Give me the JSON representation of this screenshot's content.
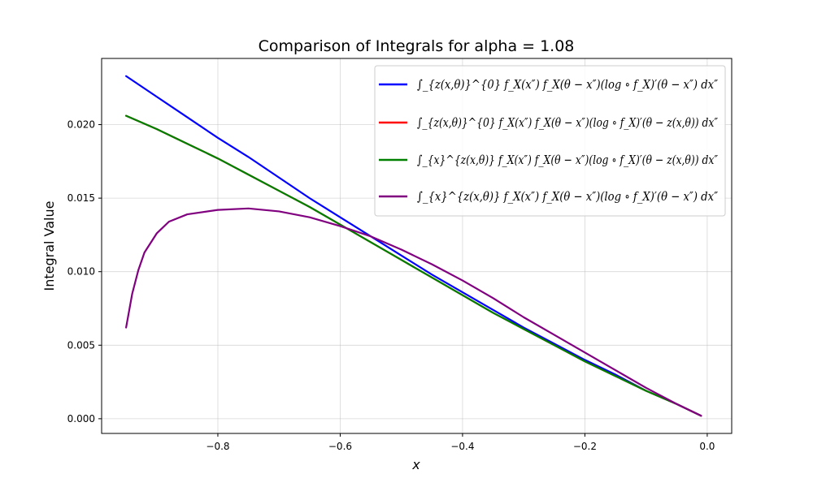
{
  "chart_data": {
    "type": "line",
    "title": "Comparison of Integrals for alpha = 1.08",
    "xlabel": "x",
    "ylabel": "Integral Value",
    "xlim": [
      -0.99,
      0.04
    ],
    "ylim": [
      -0.001,
      0.0245
    ],
    "grid": true,
    "legend_position": "top-right",
    "x_ticks": [
      -0.8,
      -0.6,
      -0.4,
      -0.2,
      0.0
    ],
    "x_tick_labels": [
      "−0.8",
      "−0.6",
      "−0.4",
      "−0.2",
      "0.0"
    ],
    "y_ticks": [
      0.0,
      0.005,
      0.01,
      0.015,
      0.02
    ],
    "y_tick_labels": [
      "0.000",
      "0.005",
      "0.010",
      "0.015",
      "0.020"
    ],
    "series": [
      {
        "name": "∫_{z(x,θ)}^{0} f_X(x″) f_X(θ − x″)(log ∘ f_X)′(θ − x″) dx″",
        "color": "#0000ff",
        "x": [
          -0.95,
          -0.9,
          -0.85,
          -0.8,
          -0.75,
          -0.7,
          -0.65,
          -0.6,
          -0.55,
          -0.5,
          -0.45,
          -0.4,
          -0.35,
          -0.3,
          -0.25,
          -0.2,
          -0.15,
          -0.1,
          -0.05,
          -0.01
        ],
        "y": [
          0.0233,
          0.0219,
          0.0205,
          0.0191,
          0.0178,
          0.0164,
          0.015,
          0.0137,
          0.0124,
          0.0111,
          0.0098,
          0.0086,
          0.0074,
          0.0062,
          0.0051,
          0.004,
          0.003,
          0.0019,
          0.001,
          0.0002
        ]
      },
      {
        "name": "∫_{z(x,θ)}^{0} f_X(x″) f_X(θ − x″)(log ∘ f_X)′(θ − z(x,θ)) dx″",
        "color": "#ff0000",
        "x": [
          -0.95,
          -0.9,
          -0.85,
          -0.8,
          -0.75,
          -0.7,
          -0.65,
          -0.6,
          -0.55,
          -0.5,
          -0.45,
          -0.4,
          -0.35,
          -0.3,
          -0.25,
          -0.2,
          -0.15,
          -0.1,
          -0.05,
          -0.01
        ],
        "y": [
          0.0206,
          0.0197,
          0.0187,
          0.0177,
          0.0166,
          0.0155,
          0.0144,
          0.0132,
          0.012,
          0.0108,
          0.0096,
          0.0084,
          0.0072,
          0.0061,
          0.005,
          0.0039,
          0.0029,
          0.0019,
          0.001,
          0.0002
        ]
      },
      {
        "name": "∫_{x}^{z(x,θ)} f_X(x″) f_X(θ − x″)(log ∘ f_X)′(θ − z(x,θ)) dx″",
        "color": "#008000",
        "x": [
          -0.95,
          -0.9,
          -0.85,
          -0.8,
          -0.75,
          -0.7,
          -0.65,
          -0.6,
          -0.55,
          -0.5,
          -0.45,
          -0.4,
          -0.35,
          -0.3,
          -0.25,
          -0.2,
          -0.15,
          -0.1,
          -0.05,
          -0.01
        ],
        "y": [
          0.0206,
          0.0197,
          0.0187,
          0.0177,
          0.0166,
          0.0155,
          0.0144,
          0.0132,
          0.012,
          0.0108,
          0.0096,
          0.0084,
          0.0072,
          0.0061,
          0.005,
          0.0039,
          0.0029,
          0.0019,
          0.001,
          0.0002
        ]
      },
      {
        "name": "∫_{x}^{z(x,θ)} f_X(x″) f_X(θ − x″)(log ∘ f_X)′(θ − x″) dx″",
        "color": "#800080",
        "x": [
          -0.95,
          -0.94,
          -0.93,
          -0.92,
          -0.9,
          -0.88,
          -0.85,
          -0.8,
          -0.75,
          -0.7,
          -0.65,
          -0.6,
          -0.55,
          -0.5,
          -0.45,
          -0.4,
          -0.35,
          -0.3,
          -0.25,
          -0.2,
          -0.15,
          -0.1,
          -0.05,
          -0.01
        ],
        "y": [
          0.0062,
          0.0085,
          0.0101,
          0.0113,
          0.0126,
          0.0134,
          0.0139,
          0.0142,
          0.0143,
          0.0141,
          0.0137,
          0.0131,
          0.0124,
          0.0115,
          0.0105,
          0.0094,
          0.0082,
          0.0069,
          0.0057,
          0.0045,
          0.0033,
          0.0021,
          0.001,
          0.0002
        ]
      }
    ]
  }
}
